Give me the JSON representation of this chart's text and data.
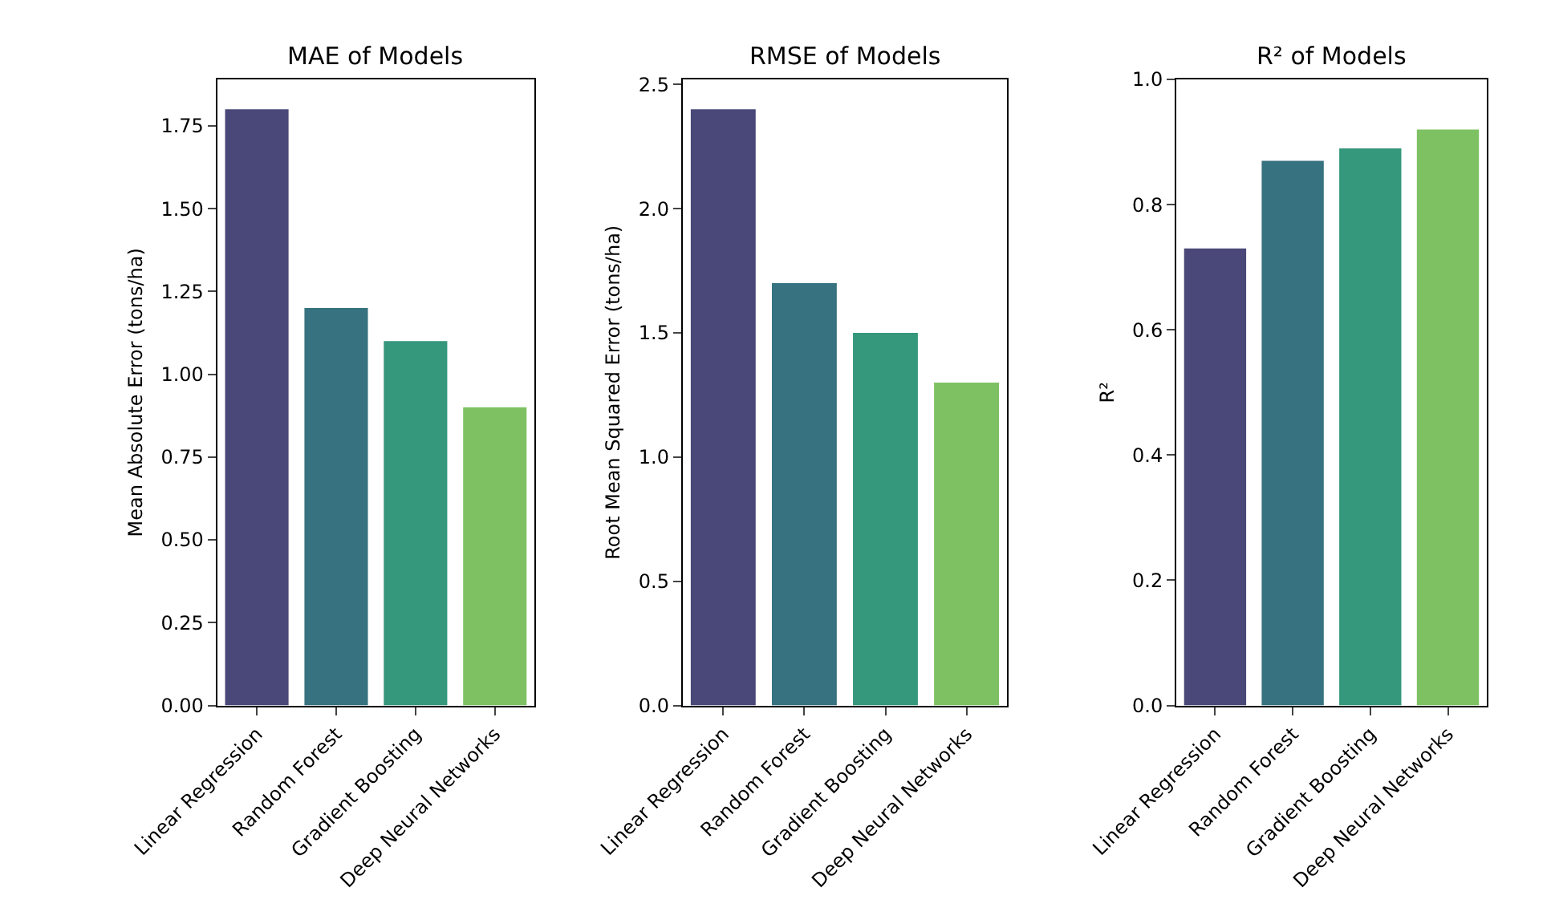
{
  "chart_data": [
    {
      "type": "bar",
      "title": "MAE of Models",
      "ylabel": "Mean Absolute Error (tons/ha)",
      "categories": [
        "Linear Regression",
        "Random Forest",
        "Gradient Boosting",
        "Deep Neural Networks"
      ],
      "values": [
        1.8,
        1.2,
        1.1,
        0.9
      ],
      "colors": [
        "#4a4878",
        "#36727f",
        "#35977b",
        "#7ec163"
      ],
      "ylim": [
        0,
        1.89
      ],
      "yticks": [
        {
          "value": 0,
          "label": "0.00"
        },
        0.25,
        {
          "value": 0.5,
          "label": "0.50"
        },
        0.75,
        {
          "value": 1,
          "label": "1.00"
        },
        1.25,
        {
          "value": 1.5,
          "label": "1.50"
        },
        1.75
      ]
    },
    {
      "type": "bar",
      "title": "RMSE of Models",
      "ylabel": "Root Mean Squared Error (tons/ha)",
      "categories": [
        "Linear Regression",
        "Random Forest",
        "Gradient Boosting",
        "Deep Neural Networks"
      ],
      "values": [
        2.4,
        1.7,
        1.5,
        1.3
      ],
      "colors": [
        "#4a4878",
        "#36727f",
        "#35977b",
        "#7ec163"
      ],
      "ylim": [
        0,
        2.52
      ],
      "yticks": [
        {
          "value": 0,
          "label": "0.0"
        },
        0.5,
        {
          "value": 1,
          "label": "1.0"
        },
        1.5,
        {
          "value": 2,
          "label": "2.0"
        },
        2.5
      ]
    },
    {
      "type": "bar",
      "title": "R² of Models",
      "ylabel": "R²",
      "categories": [
        "Linear Regression",
        "Random Forest",
        "Gradient Boosting",
        "Deep Neural Networks"
      ],
      "values": [
        0.73,
        0.87,
        0.89,
        0.92
      ],
      "colors": [
        "#4a4878",
        "#36727f",
        "#35977b",
        "#7ec163"
      ],
      "ylim": [
        0,
        1.0
      ],
      "yticks": [
        {
          "value": 0,
          "label": "0.0"
        },
        0.2,
        0.4,
        0.6,
        0.8,
        {
          "value": 1,
          "label": "1.0"
        }
      ]
    }
  ]
}
